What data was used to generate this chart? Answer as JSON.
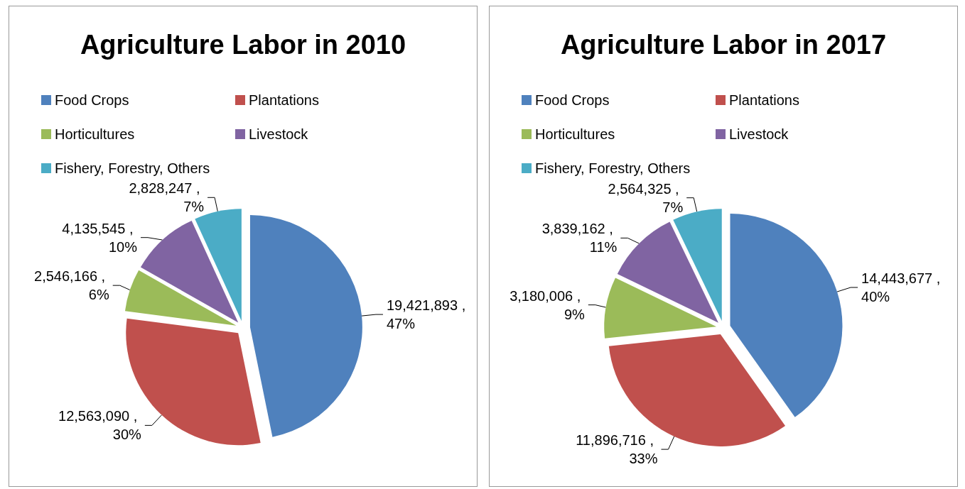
{
  "chart_data": [
    {
      "type": "pie",
      "title": "Agriculture Labor in 2010",
      "categories": [
        "Food Crops",
        "Plantations",
        "Horticultures",
        "Livestock",
        "Fishery, Forestry, Others"
      ],
      "values": [
        19421893,
        12563090,
        2546166,
        4135545,
        2828247
      ],
      "colors": [
        "#4f81bd",
        "#c0504d",
        "#9bbb59",
        "#8064a2",
        "#4bacc6"
      ],
      "value_labels": [
        "19,421,893 , 47%",
        "12,563,090 , 30%",
        "2,546,166 , 6%",
        "4,135,545 , 10%",
        "2,828,247 , 7%"
      ],
      "legend": "top"
    },
    {
      "type": "pie",
      "title": "Agriculture Labor in 2017",
      "categories": [
        "Food Crops",
        "Plantations",
        "Horticultures",
        "Livestock",
        "Fishery, Forestry, Others"
      ],
      "values": [
        14443677,
        11896716,
        3180006,
        3839162,
        2564325
      ],
      "colors": [
        "#4f81bd",
        "#c0504d",
        "#9bbb59",
        "#8064a2",
        "#4bacc6"
      ],
      "value_labels": [
        "14,443,677 , 40%",
        "11,896,716 , 33%",
        "3,180,006 , 9%",
        "3,839,162 , 11%",
        "2,564,325 , 7%"
      ],
      "legend": "top"
    }
  ]
}
